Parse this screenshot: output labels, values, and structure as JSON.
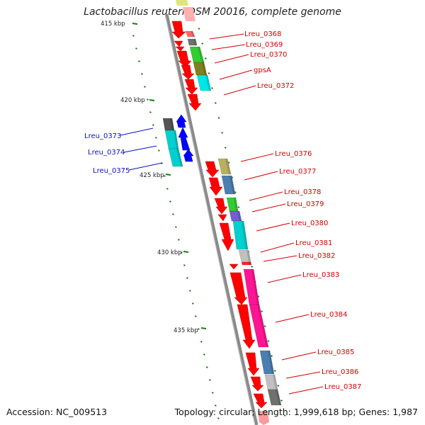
{
  "title": "Lactobacillus reuteri DSM 20016, complete genome",
  "accession": "Accession: NC_009513",
  "topology": "Topology: circular; Length: 1,999,618 bp; Genes: 1,987",
  "colors": {
    "backbone": "#8a8a8a",
    "forward_label": "#d40000",
    "reverse_label": "#1010c0",
    "tick": "#1a7a1a"
  },
  "ticks": [
    {
      "kbp": 415,
      "label": "415 kbp"
    },
    {
      "kbp": 420,
      "label": "420 kbp"
    },
    {
      "kbp": 425,
      "label": "425 kbp"
    },
    {
      "kbp": 430,
      "label": "430 kbp"
    },
    {
      "kbp": 435,
      "label": "435 kbp"
    }
  ],
  "genes": [
    {
      "name": "Lreu_0368",
      "strand": "+",
      "color": "#ff6666"
    },
    {
      "name": "Lreu_0369",
      "strand": "+",
      "color": "#707070"
    },
    {
      "name": "Lreu_0370",
      "strand": "+",
      "color": "#33cc33"
    },
    {
      "name": "gpsA",
      "strand": "+",
      "color": "#808020"
    },
    {
      "name": "Lreu_0372",
      "strand": "+",
      "color": "#00e5e5"
    },
    {
      "name": "Lreu_0373",
      "strand": "-",
      "color": "#555555"
    },
    {
      "name": "Lreu_0374",
      "strand": "-",
      "color": "#00d0d0"
    },
    {
      "name": "Lreu_0375",
      "strand": "-",
      "color": "#00d0d0"
    },
    {
      "name": "Lreu_0376",
      "strand": "+",
      "color": "#b8b060"
    },
    {
      "name": "Lreu_0377",
      "strand": "+",
      "color": "#4a7fb0"
    },
    {
      "name": "Lreu_0378",
      "strand": "+",
      "color": "#33cc33"
    },
    {
      "name": "Lreu_0379",
      "strand": "+",
      "color": "#7060d0"
    },
    {
      "name": "Lreu_0380",
      "strand": "+",
      "color": "#00d0d0"
    },
    {
      "name": "Lreu_0381",
      "strand": "+",
      "color": "#c0c0c0"
    },
    {
      "name": "Lreu_0382",
      "strand": "+",
      "color": "#ff2020"
    },
    {
      "name": "Lreu_0383",
      "strand": "+",
      "color": "#ff1493"
    },
    {
      "name": "Lreu_0384",
      "strand": "+",
      "color": "#ff1493"
    },
    {
      "name": "Lreu_0385",
      "strand": "+",
      "color": "#4a7fb0"
    },
    {
      "name": "Lreu_0386",
      "strand": "+",
      "color": "#c0c0c0"
    },
    {
      "name": "Lreu_0387",
      "strand": "+",
      "color": "#707070"
    }
  ]
}
